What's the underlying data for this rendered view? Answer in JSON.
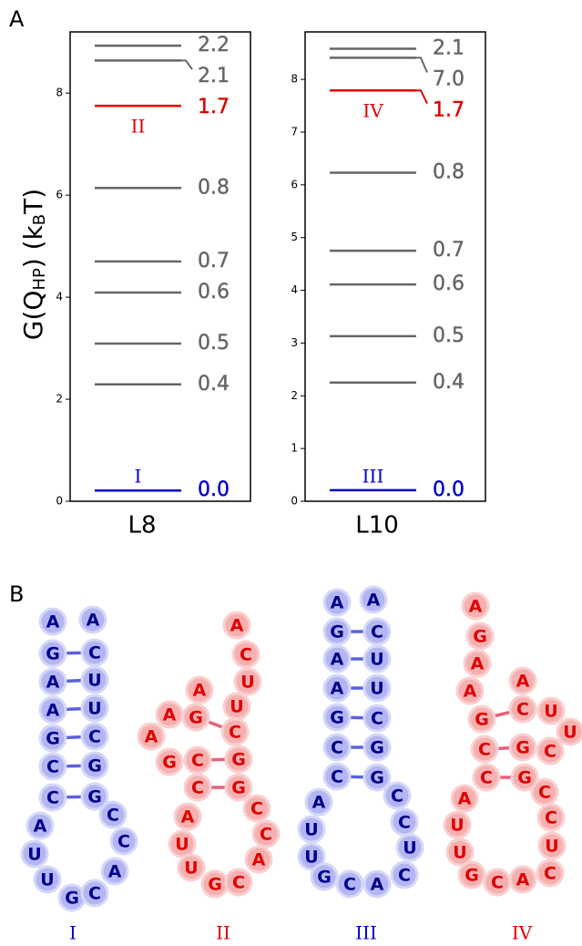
{
  "panel_labels": [
    "A",
    "B"
  ],
  "chart_data": [
    {
      "type": "levels",
      "ylabel": [
        "G(Q",
        "HP",
        ") (k",
        "B",
        "T)"
      ],
      "xlabel": "L8",
      "ylim": [
        0,
        9.2
      ],
      "yticks": [
        0,
        2,
        4,
        6,
        8
      ],
      "levels": [
        {
          "value": 0.21,
          "label": "0.0",
          "color": "#0000cc",
          "state": "I"
        },
        {
          "value": 2.29,
          "label": "0.4",
          "color": "#666666"
        },
        {
          "value": 3.09,
          "label": "0.5",
          "color": "#666666"
        },
        {
          "value": 4.09,
          "label": "0.6",
          "color": "#666666"
        },
        {
          "value": 4.7,
          "label": "0.7",
          "color": "#666666"
        },
        {
          "value": 6.14,
          "label": "0.8",
          "color": "#666666"
        },
        {
          "value": 7.75,
          "label": "1.7",
          "color": "#e00000",
          "state": "II"
        },
        {
          "value": 8.64,
          "label": "2.1",
          "color": "#666666"
        },
        {
          "value": 8.93,
          "label": "2.2",
          "color": "#666666"
        }
      ]
    },
    {
      "type": "levels",
      "xlabel": "L10",
      "ylim": [
        0,
        8.9
      ],
      "yticks": [
        0,
        1,
        2,
        3,
        4,
        5,
        6,
        7,
        8
      ],
      "levels": [
        {
          "value": 0.21,
          "label": "0.0",
          "color": "#0000cc",
          "state": "III"
        },
        {
          "value": 2.25,
          "label": "0.4",
          "color": "#666666"
        },
        {
          "value": 3.13,
          "label": "0.5",
          "color": "#666666"
        },
        {
          "value": 4.11,
          "label": "0.6",
          "color": "#666666"
        },
        {
          "value": 4.75,
          "label": "0.7",
          "color": "#666666"
        },
        {
          "value": 6.23,
          "label": "0.8",
          "color": "#666666"
        },
        {
          "value": 7.79,
          "label": "1.7",
          "color": "#e00000",
          "state": "IV"
        },
        {
          "value": 8.41,
          "label": "7.0",
          "color": "#666666"
        },
        {
          "value": 8.58,
          "label": "2.1",
          "color": "#666666"
        }
      ]
    }
  ],
  "structures": [
    {
      "name": "I",
      "color": "#0000cc",
      "nucleotides": [
        "A",
        "G",
        "A",
        "A",
        "G",
        "C",
        "C",
        "A",
        "U",
        "U",
        "G",
        "C",
        "A",
        "C",
        "C",
        "G",
        "G",
        "C",
        "U",
        "U",
        "C",
        "A"
      ]
    },
    {
      "name": "II",
      "color": "#e00000",
      "nucleotides": [
        "A",
        "G",
        "A",
        "A",
        "G",
        "C",
        "C",
        "A",
        "U",
        "U",
        "G",
        "C",
        "A",
        "C",
        "C",
        "G",
        "G",
        "C",
        "U",
        "U",
        "C",
        "A"
      ]
    },
    {
      "name": "III",
      "color": "#0000cc",
      "nucleotides": [
        "A",
        "G",
        "A",
        "A",
        "G",
        "C",
        "C",
        "A",
        "U",
        "U",
        "G",
        "C",
        "A",
        "C",
        "U",
        "C",
        "C",
        "G",
        "G",
        "C",
        "U",
        "U",
        "C",
        "A"
      ]
    },
    {
      "name": "IV",
      "color": "#e00000",
      "nucleotides": [
        "A",
        "G",
        "A",
        "A",
        "G",
        "C",
        "C",
        "A",
        "U",
        "U",
        "G",
        "C",
        "A",
        "C",
        "U",
        "C",
        "C",
        "G",
        "G",
        "C",
        "U",
        "U",
        "C",
        "A"
      ]
    }
  ]
}
